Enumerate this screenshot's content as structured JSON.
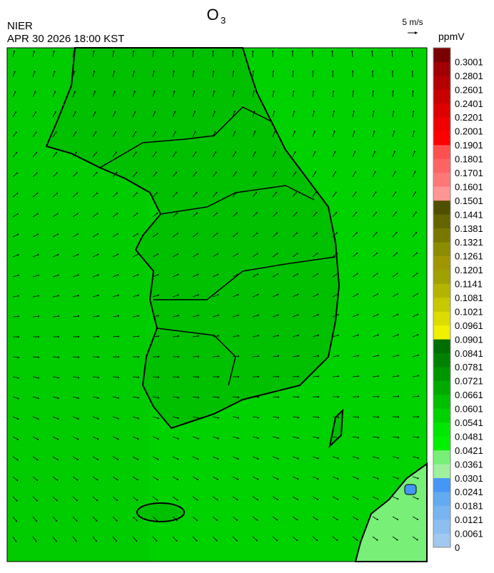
{
  "header": {
    "title": {
      "text": "O",
      "subscript": "3"
    },
    "source": "NIER",
    "datetime": "APR 30 2026 18:00 KST",
    "vector_scale": "5 m/s",
    "unit": "ppmV"
  },
  "colorbar": {
    "levels": [
      0,
      0.0061,
      0.0121,
      0.0181,
      0.0241,
      0.0301,
      0.0361,
      0.0421,
      0.0481,
      0.0541,
      0.0601,
      0.0661,
      0.0721,
      0.0781,
      0.0841,
      0.0901,
      0.0961,
      0.1021,
      0.1081,
      0.1141,
      0.1201,
      0.1261,
      0.1321,
      0.1381,
      0.1441,
      0.1501,
      0.1601,
      0.1701,
      0.1801,
      0.1901,
      0.2001,
      0.2201,
      0.2401,
      0.2601,
      0.2801,
      0.3001
    ],
    "colors": [
      "#a0c8f0",
      "#8cbef0",
      "#78b4f0",
      "#64aaf0",
      "#4696f5",
      "#a0f0a0",
      "#78f078",
      "#00f000",
      "#00e600",
      "#00d200",
      "#00be00",
      "#00aa00",
      "#009600",
      "#008200",
      "#006e00",
      "#f0f000",
      "#dcdc00",
      "#c8c800",
      "#b4b400",
      "#a0a000",
      "#a09600",
      "#8c8c00",
      "#787800",
      "#646400",
      "#505000",
      "#ff9696",
      "#ff7878",
      "#ff6464",
      "#ff5050",
      "#ff0000",
      "#f00000",
      "#dc0000",
      "#c80000",
      "#b40000",
      "#a00000",
      "#780000"
    ]
  }
}
